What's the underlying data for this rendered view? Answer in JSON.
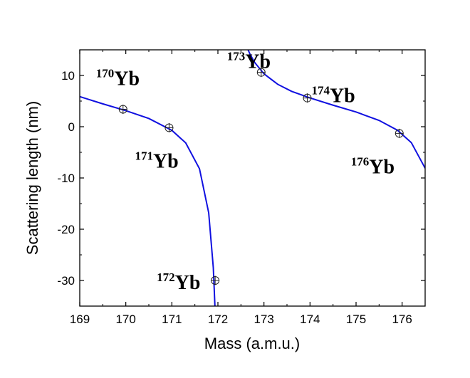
{
  "chart_data": {
    "type": "scatter",
    "xlabel": "Mass (a.m.u.)",
    "ylabel": "Scattering length (nm)",
    "xlim": [
      169,
      176.5
    ],
    "ylim": [
      -35,
      15
    ],
    "xticks": [
      169,
      170,
      171,
      172,
      173,
      174,
      175,
      176
    ],
    "yticks": [
      10,
      0,
      -10,
      -20,
      -30
    ],
    "grid": false,
    "points": [
      {
        "isotope_mass": "170",
        "element": "Yb",
        "x": 169.94,
        "y": 3.4
      },
      {
        "isotope_mass": "171",
        "element": "Yb",
        "x": 170.94,
        "y": -0.2
      },
      {
        "isotope_mass": "172",
        "element": "Yb",
        "x": 171.94,
        "y": -30.0
      },
      {
        "isotope_mass": "173",
        "element": "Yb",
        "x": 172.94,
        "y": 10.6
      },
      {
        "isotope_mass": "174",
        "element": "Yb",
        "x": 173.94,
        "y": 5.6
      },
      {
        "isotope_mass": "176",
        "element": "Yb",
        "x": 175.94,
        "y": -1.3
      }
    ],
    "curve_color": "#1010e0",
    "curve_branches": [
      {
        "x": [
          169,
          169.5,
          170,
          170.5,
          171,
          171.3,
          171.6,
          171.8,
          171.9,
          171.95
        ],
        "y": [
          5.87,
          4.46,
          3.14,
          1.6,
          -0.71,
          -3.15,
          -8.2,
          -16.8,
          -27.5,
          -38.1
        ]
      },
      {
        "x": [
          172.65,
          172.7,
          172.8,
          173,
          173.3,
          173.6,
          174,
          174.5,
          175,
          175.5,
          175.9,
          176.2,
          176.5
        ],
        "y": [
          15.1,
          14.1,
          12.52,
          10.32,
          8.27,
          6.9,
          5.62,
          4.2,
          2.87,
          1.23,
          -0.69,
          -3.1,
          -8.1
        ]
      }
    ]
  }
}
